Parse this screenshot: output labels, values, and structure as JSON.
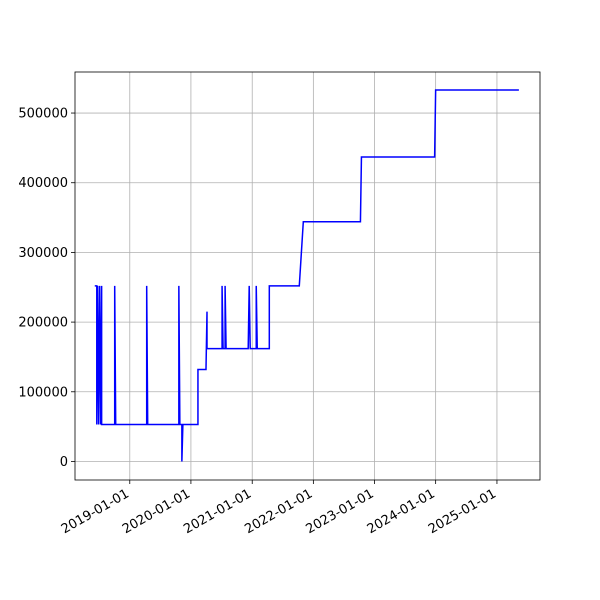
{
  "chart_data": {
    "type": "line",
    "x": [
      "2018-06-06",
      "2018-06-18",
      "2018-06-18",
      "2018-06-23",
      "2018-06-29",
      "2018-07-05",
      "2018-07-11",
      "2018-07-17",
      "2018-07-17",
      "2018-10-03",
      "2018-10-03",
      "2018-10-09",
      "2019-04-12",
      "2019-04-12",
      "2019-04-18",
      "2019-10-21",
      "2019-10-21",
      "2019-10-27",
      "2019-11-08",
      "2019-11-08",
      "2019-11-14",
      "2020-02-12",
      "2020-02-12",
      "2020-03-31",
      "2020-04-06",
      "2020-04-06",
      "2020-07-05",
      "2020-07-05",
      "2020-07-11",
      "2020-07-23",
      "2020-07-23",
      "2020-07-29",
      "2020-12-08",
      "2020-12-14",
      "2020-12-20",
      "2021-01-25",
      "2021-01-25",
      "2021-01-31",
      "2021-04-13",
      "2021-04-13",
      "2021-10-09",
      "2021-11-02",
      "2022-10-09",
      "2022-10-15",
      "2023-12-26",
      "2024-01-01",
      "2025-05-12"
    ],
    "series": [
      {
        "color": "#0000ff",
        "values": [
          252000,
          252000,
          53000,
          252000,
          53000,
          252000,
          53000,
          252000,
          53000,
          53000,
          252000,
          53000,
          53000,
          252000,
          53000,
          53000,
          252000,
          53000,
          53000,
          0,
          53000,
          53000,
          132000,
          132000,
          215000,
          162000,
          162000,
          252000,
          162000,
          162000,
          252000,
          162000,
          162000,
          252000,
          162000,
          162000,
          252000,
          162000,
          162000,
          252000,
          252000,
          344000,
          344000,
          437000,
          437000,
          533000,
          533000
        ]
      }
    ],
    "xlim": [
      "2018-02-08",
      "2025-09-15"
    ],
    "xticks": [
      "2019-01-01",
      "2020-01-01",
      "2021-01-01",
      "2022-01-01",
      "2023-01-01",
      "2024-01-01",
      "2025-01-01"
    ],
    "ylim": [
      -26600,
      558900
    ],
    "yticks": [
      0,
      100000,
      200000,
      300000,
      400000,
      500000
    ],
    "grid": true
  }
}
